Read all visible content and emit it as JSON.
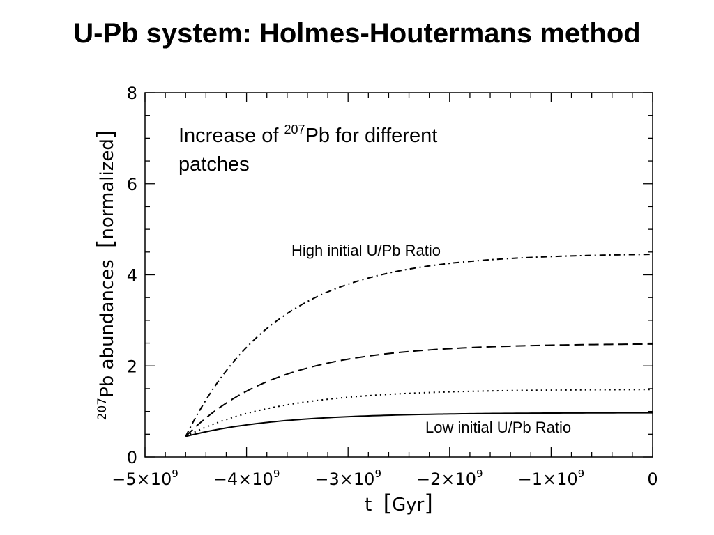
{
  "slide": {
    "title": "U-Pb system: Holmes-Houtermans method"
  },
  "chart_data": {
    "type": "line",
    "xlabel_text": "t",
    "xlabel_unit": "Gyr",
    "ylabel_prefix": "207",
    "ylabel_text": "Pb abundances",
    "ylabel_unit": "normalized",
    "xlim": [
      -5000000000,
      0
    ],
    "ylim": [
      0,
      8
    ],
    "x_ticks": [
      {
        "value": -5000000000,
        "label": "−5×10",
        "exp": "9"
      },
      {
        "value": -4000000000,
        "label": "−4×10",
        "exp": "9"
      },
      {
        "value": -3000000000,
        "label": "−3×10",
        "exp": "9"
      },
      {
        "value": -2000000000,
        "label": "−2×10",
        "exp": "9"
      },
      {
        "value": -1000000000,
        "label": "−1×10",
        "exp": "9"
      },
      {
        "value": 0,
        "label": "0",
        "exp": ""
      }
    ],
    "y_ticks": [
      {
        "value": 0,
        "label": "0"
      },
      {
        "value": 2,
        "label": "2"
      },
      {
        "value": 4,
        "label": "4"
      },
      {
        "value": 6,
        "label": "6"
      },
      {
        "value": 8,
        "label": "8"
      }
    ],
    "grid": false,
    "series": [
      {
        "style": "dashdot",
        "start_x": -4600000000,
        "start_y": 0.45,
        "end_y": 4.45,
        "e_folding_gyr": 0.9
      },
      {
        "style": "dashed",
        "start_x": -4600000000,
        "start_y": 0.45,
        "end_y": 2.48,
        "e_folding_gyr": 0.9
      },
      {
        "style": "dotted",
        "start_x": -4600000000,
        "start_y": 0.45,
        "end_y": 1.48,
        "e_folding_gyr": 0.9
      },
      {
        "style": "solid",
        "start_x": -4600000000,
        "start_y": 0.45,
        "end_y": 0.97,
        "e_folding_gyr": 0.9
      }
    ],
    "annotations": {
      "main_line1_prefix": "Increase of ",
      "main_sup": "207",
      "main_line1_suffix": "Pb for different",
      "main_line2": "patches",
      "high_label": "High initial U/Pb Ratio",
      "low_label": "Low initial U/Pb Ratio"
    }
  }
}
